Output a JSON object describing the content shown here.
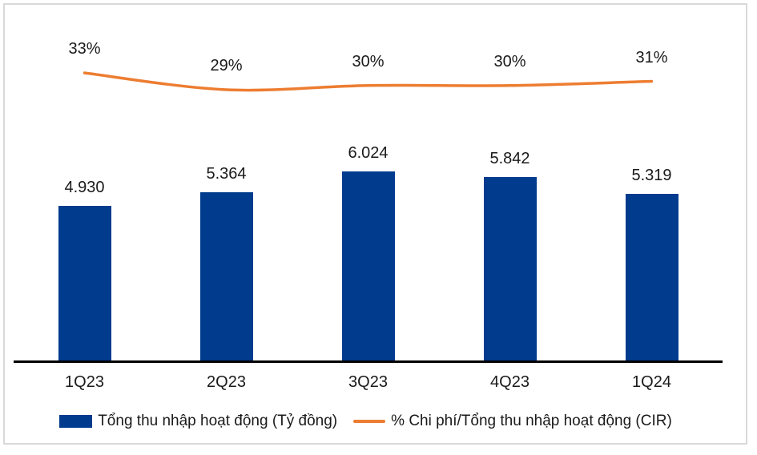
{
  "chart_data": {
    "type": "combo-bar-line",
    "title": "",
    "categories": [
      "1Q23",
      "2Q23",
      "3Q23",
      "4Q23",
      "1Q24"
    ],
    "series": [
      {
        "name": "Tổng thu nhập hoạt động (Tỷ đồng)",
        "type": "bar",
        "axis": "primary",
        "values": [
          4930,
          5364,
          6024,
          5842,
          5319
        ],
        "data_labels": [
          "4.930",
          "5.364",
          "6.024",
          "5.842",
          "5.319"
        ],
        "color": "#003b8e"
      },
      {
        "name": "% Chi phí/Tổng thu nhập hoạt động (CIR)",
        "type": "line",
        "axis": "secondary",
        "unit": "%",
        "values": [
          33,
          29,
          30,
          30,
          31
        ],
        "data_labels": [
          "33%",
          "29%",
          "30%",
          "30%",
          "31%"
        ],
        "color": "#ed7d31"
      }
    ],
    "legend_position": "bottom",
    "gridlines": false,
    "value_axes_visible": false,
    "x_axis_line_color": "#000000",
    "label_color": "#1a1a1a",
    "frame_border_color": "#d9d9d9",
    "background": "#ffffff"
  }
}
